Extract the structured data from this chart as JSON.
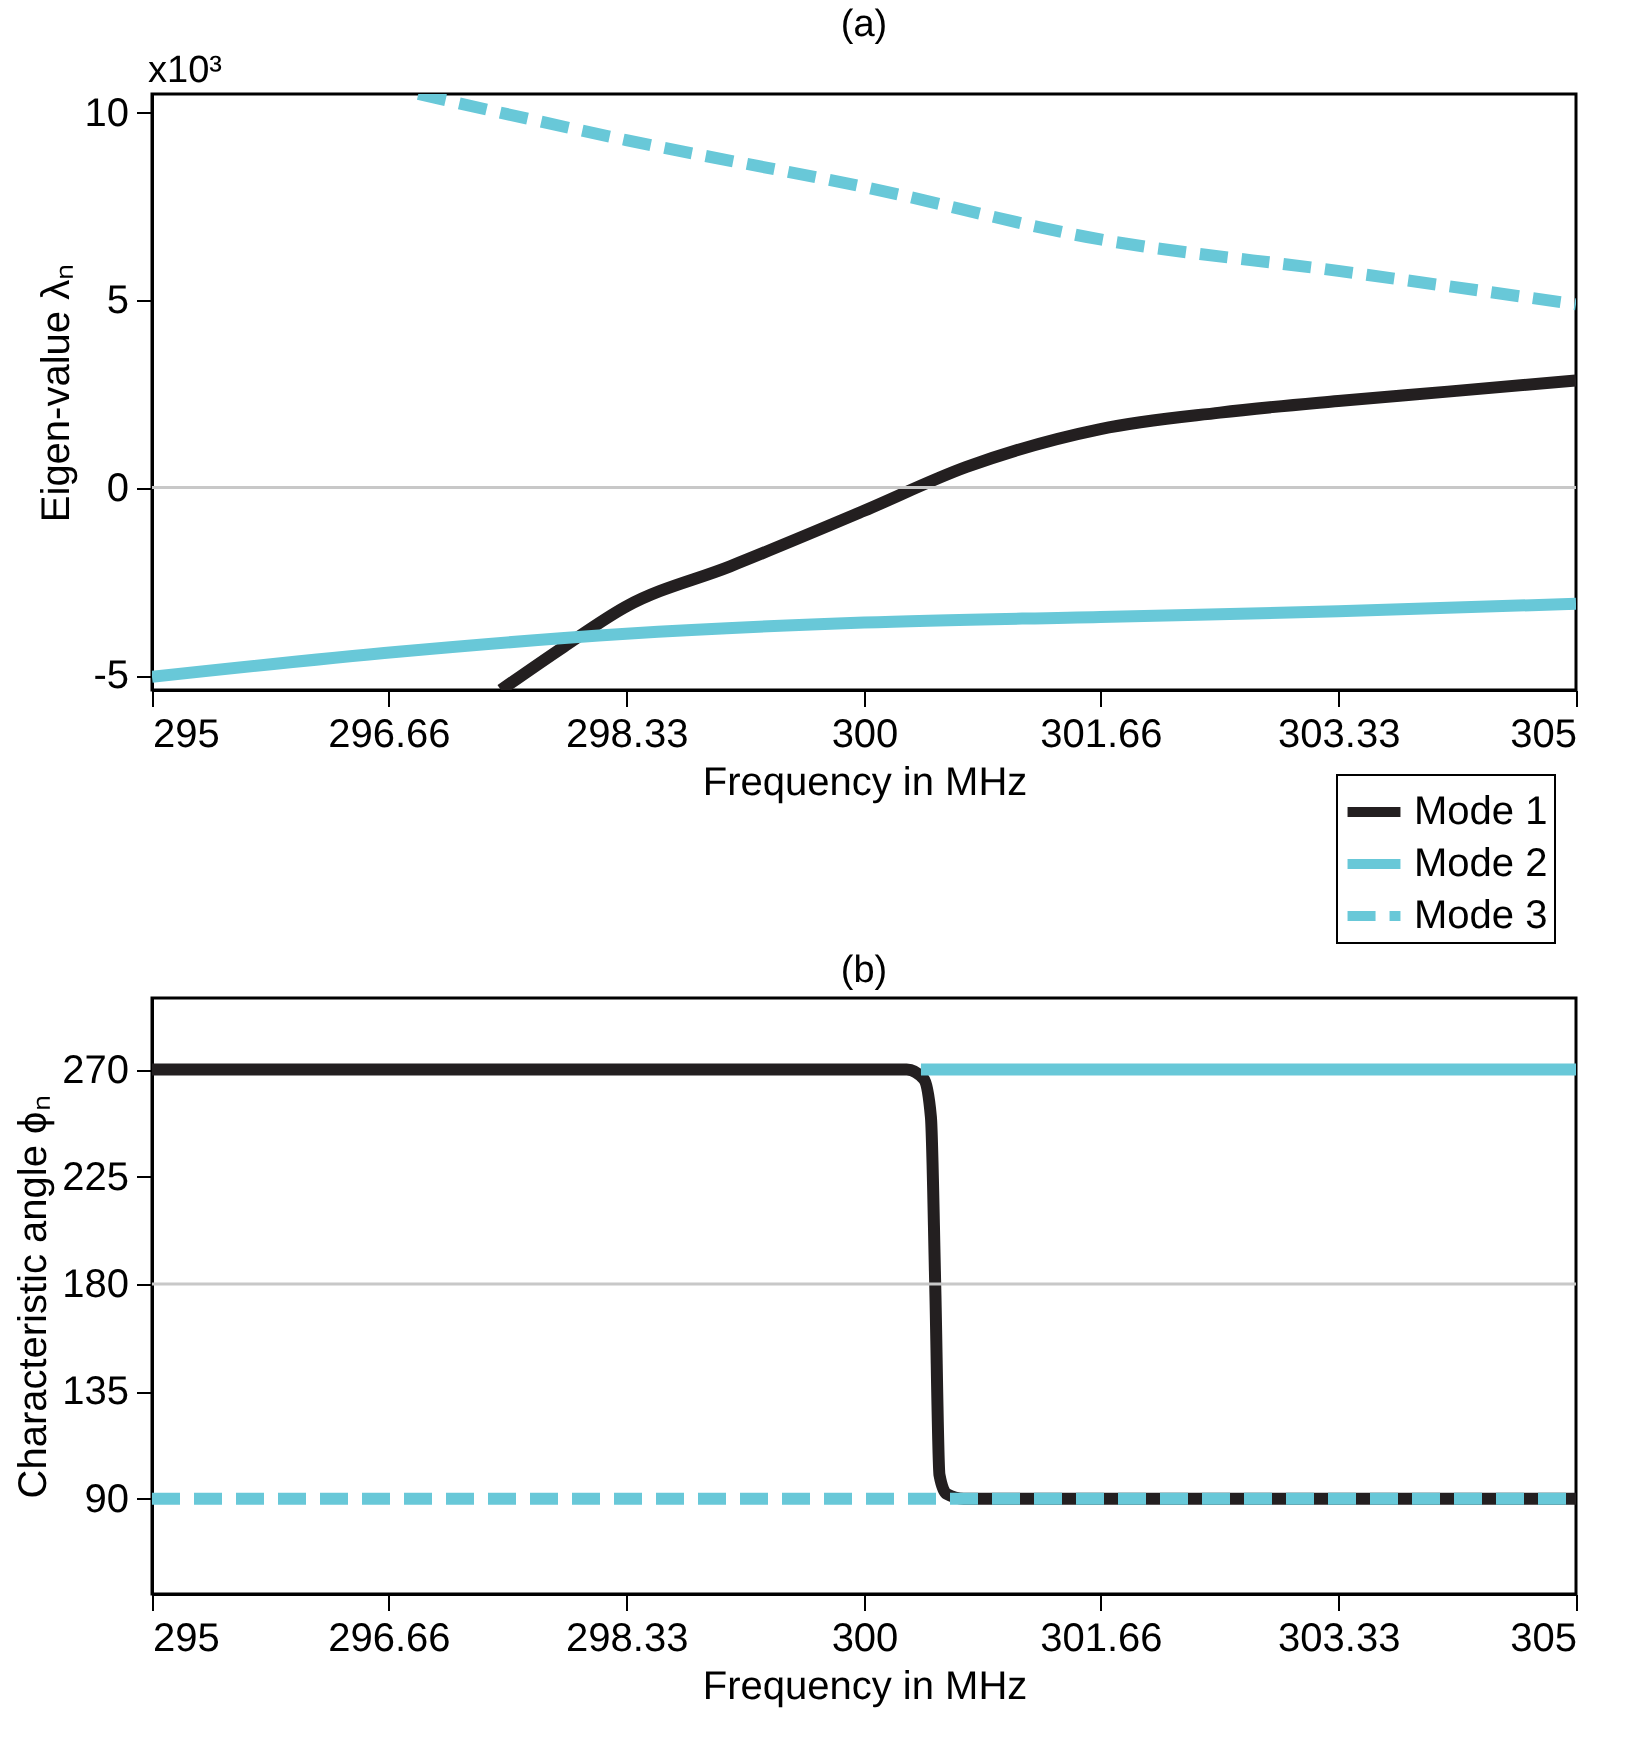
{
  "chart_data": [
    {
      "type": "line",
      "title": "(a)",
      "xlabel": "Frequency in MHz",
      "ylabel": "Eigen-value λₙ",
      "annotations": [
        "x10³"
      ],
      "xlim": [
        295,
        305
      ],
      "xticks": [
        295,
        296.66,
        298.33,
        300,
        301.66,
        303.33,
        305
      ],
      "ylim": [
        -5.4,
        10.5
      ],
      "yticks": [
        -5,
        0,
        5,
        10
      ],
      "ref_lines": [
        {
          "axis": "y",
          "value": 0,
          "color": "#c8c8c8"
        }
      ],
      "legend": "bottom right",
      "series": [
        {
          "name": "Mode 1",
          "color": "#231f20",
          "line_style": "solid",
          "x": [
            297.45,
            297.89,
            298.33,
            299.06,
            300,
            300.72,
            301.66,
            302.5,
            303.33,
            304.1,
            305
          ],
          "values": [
            -5.4,
            -4.25,
            -3.17,
            -2.1,
            -0.62,
            0.55,
            1.56,
            2.0,
            2.31,
            2.56,
            2.86
          ]
        },
        {
          "name": "Mode 2",
          "color": "#68c8d8",
          "line_style": "solid",
          "x": [
            295,
            296.73,
            298.33,
            300,
            301.66,
            303.33,
            305
          ],
          "values": [
            -5.05,
            -4.38,
            -3.9,
            -3.6,
            -3.45,
            -3.3,
            -3.1
          ]
        },
        {
          "name": "Mode 3",
          "color": "#68c8d8",
          "line_style": "dashed",
          "x": [
            296.87,
            298.33,
            300,
            301.66,
            303.33,
            305
          ],
          "values": [
            10.5,
            9.27,
            8.02,
            6.62,
            5.78,
            4.89
          ]
        }
      ]
    },
    {
      "type": "line",
      "title": "(b)",
      "xlabel": "Frequency in MHz",
      "ylabel": "Characteristic angle ϕₙ",
      "xlim": [
        295,
        305
      ],
      "xticks": [
        295,
        296.66,
        298.33,
        300,
        301.66,
        303.33,
        305
      ],
      "ylim": [
        50,
        300
      ],
      "yticks": [
        90,
        135,
        180,
        225,
        270
      ],
      "ref_lines": [
        {
          "axis": "y",
          "value": 180,
          "color": "#c8c8c8"
        }
      ],
      "series": [
        {
          "color": "#231f20",
          "line_style": "solid",
          "x": [
            295,
            300.3,
            300.42,
            300.47,
            300.5,
            300.53,
            300.58,
            300.7,
            305
          ],
          "values": [
            270,
            270,
            266,
            250,
            180,
            100,
            92,
            90,
            90
          ]
        },
        {
          "color": "#68c8d8",
          "line_style": "solid",
          "x": [
            300.4,
            305
          ],
          "values": [
            270,
            270
          ]
        },
        {
          "color": "#68c8d8",
          "line_style": "dashed",
          "x": [
            295,
            305
          ],
          "values": [
            90,
            90
          ]
        }
      ]
    }
  ]
}
